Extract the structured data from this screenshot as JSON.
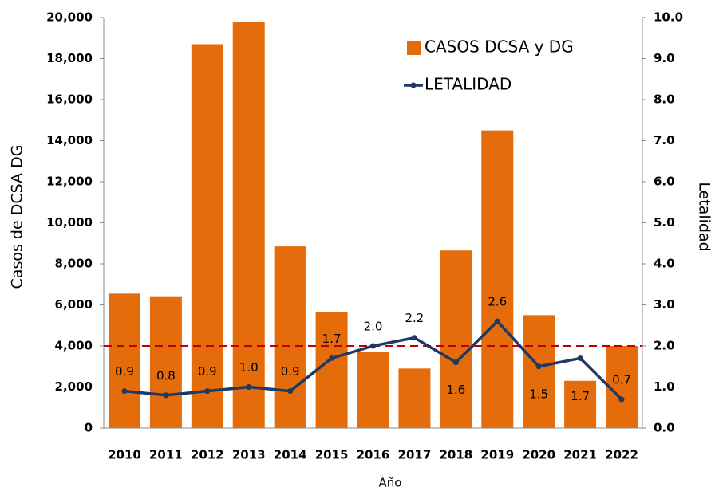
{
  "chart_data": {
    "type": "bar",
    "categories": [
      "2010",
      "2011",
      "2012",
      "2013",
      "2014",
      "2015",
      "2016",
      "2017",
      "2018",
      "2019",
      "2020",
      "2021",
      "2022"
    ],
    "series": [
      {
        "name": "CASOS DCSA y DG",
        "type": "bar",
        "color": "#e46c0a",
        "values": [
          6550,
          6420,
          18700,
          19800,
          8850,
          5650,
          3700,
          2900,
          8650,
          14500,
          5500,
          2300,
          4000
        ]
      },
      {
        "name": "LETALIDAD",
        "type": "line",
        "axis": "y2",
        "color": "#1f3864",
        "values": [
          0.9,
          0.8,
          0.9,
          1.0,
          0.9,
          1.7,
          2.0,
          2.2,
          1.6,
          2.6,
          1.5,
          1.7,
          0.7
        ],
        "value_labels": [
          "0.9",
          "0.8",
          "0.9",
          "1.0",
          "0.9",
          "1.7",
          "2.0",
          "2.2",
          "1.6",
          "2.6",
          "1.5",
          "1.7",
          "0.7"
        ]
      }
    ],
    "xlabel": "Año",
    "ylabel": "Casos de DCSA  DG",
    "y2label": "Letalidad",
    "ylim": [
      0,
      20000
    ],
    "yticks": [
      0,
      {
        "value": 2000,
        "label": "2,000"
      },
      {
        "value": 4000,
        "label": "4,000"
      },
      {
        "value": 6000,
        "label": "6,000"
      },
      {
        "value": 8000,
        "label": "8,000"
      },
      {
        "value": 10000,
        "label": "10,000"
      },
      {
        "value": 12000,
        "label": "12,000"
      },
      {
        "value": 14000,
        "label": "14,000"
      },
      {
        "value": 16000,
        "label": "16,000"
      },
      {
        "value": 18000,
        "label": "18,000"
      },
      {
        "value": 20000,
        "label": "20,000"
      }
    ],
    "y2lim": [
      0,
      10
    ],
    "y2ticks": [
      {
        "value": 0,
        "label": "0.0"
      },
      {
        "value": 1,
        "label": "1.0"
      },
      {
        "value": 2,
        "label": "2.0"
      },
      {
        "value": 3,
        "label": "3.0"
      },
      {
        "value": 4,
        "label": "4.0"
      },
      {
        "value": 5,
        "label": "5.0"
      },
      {
        "value": 6,
        "label": "6.0"
      },
      {
        "value": 7,
        "label": "7.0"
      },
      {
        "value": 8,
        "label": "8.0"
      },
      {
        "value": 9,
        "label": "9.0"
      },
      {
        "value": 10,
        "label": "10.0"
      }
    ],
    "reference_line": {
      "value": 4000,
      "color": "#c00000"
    },
    "legend": "upper right",
    "grid": false
  }
}
